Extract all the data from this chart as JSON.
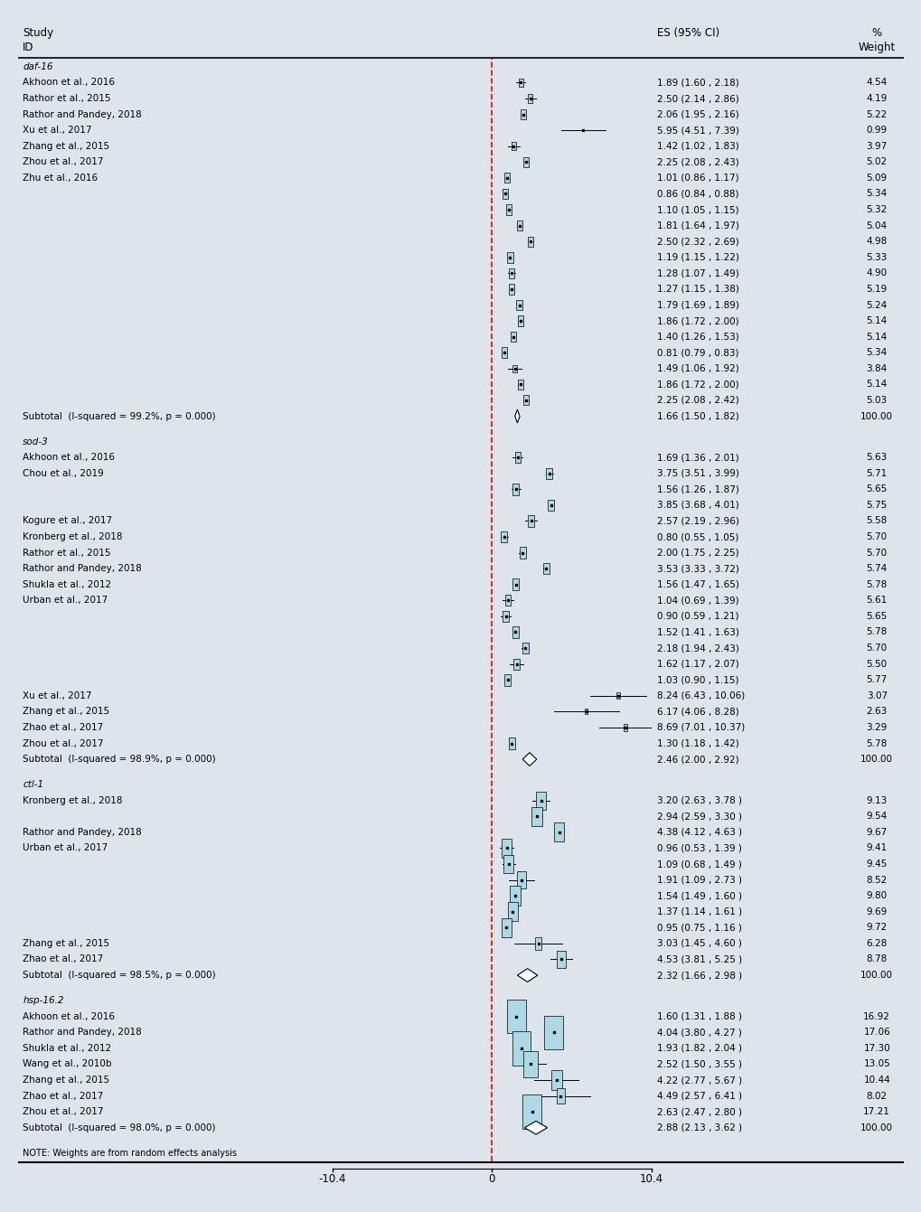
{
  "x_min": -10.4,
  "x_max": 10.4,
  "x_ticks": [
    -10.4,
    0,
    10.4
  ],
  "note": "NOTE: Weights are from random effects analysis",
  "groups": [
    {
      "name": "daf-16",
      "studies": [
        {
          "label": "Akhoon et al., 2016",
          "es": 1.89,
          "ci_lo": 1.6,
          "ci_hi": 2.18,
          "weight": 4.54,
          "ci_str": "1.89 (1.60 , 2.18)",
          "w_str": "4.54"
        },
        {
          "label": "Rathor et al., 2015",
          "es": 2.5,
          "ci_lo": 2.14,
          "ci_hi": 2.86,
          "weight": 4.19,
          "ci_str": "2.50 (2.14 , 2.86)",
          "w_str": "4.19"
        },
        {
          "label": "Rathor and Pandey, 2018",
          "es": 2.06,
          "ci_lo": 1.95,
          "ci_hi": 2.16,
          "weight": 5.22,
          "ci_str": "2.06 (1.95 , 2.16)",
          "w_str": "5.22"
        },
        {
          "label": "Xu et al., 2017",
          "es": 5.95,
          "ci_lo": 4.51,
          "ci_hi": 7.39,
          "weight": 0.99,
          "ci_str": "5.95 (4.51 , 7.39)",
          "w_str": "0.99"
        },
        {
          "label": "Zhang et al., 2015",
          "es": 1.42,
          "ci_lo": 1.02,
          "ci_hi": 1.83,
          "weight": 3.97,
          "ci_str": "1.42 (1.02 , 1.83)",
          "w_str": "3.97"
        },
        {
          "label": "Zhou et al., 2017",
          "es": 2.25,
          "ci_lo": 2.08,
          "ci_hi": 2.43,
          "weight": 5.02,
          "ci_str": "2.25 (2.08 , 2.43)",
          "w_str": "5.02"
        },
        {
          "label": "Zhu et al., 2016",
          "es": 1.01,
          "ci_lo": 0.86,
          "ci_hi": 1.17,
          "weight": 5.09,
          "ci_str": "1.01 (0.86 , 1.17)",
          "w_str": "5.09"
        },
        {
          "label": "",
          "es": 0.86,
          "ci_lo": 0.84,
          "ci_hi": 0.88,
          "weight": 5.34,
          "ci_str": "0.86 (0.84 , 0.88)",
          "w_str": "5.34"
        },
        {
          "label": "",
          "es": 1.1,
          "ci_lo": 1.05,
          "ci_hi": 1.15,
          "weight": 5.32,
          "ci_str": "1.10 (1.05 , 1.15)",
          "w_str": "5.32"
        },
        {
          "label": "",
          "es": 1.81,
          "ci_lo": 1.64,
          "ci_hi": 1.97,
          "weight": 5.04,
          "ci_str": "1.81 (1.64 , 1.97)",
          "w_str": "5.04"
        },
        {
          "label": "",
          "es": 2.5,
          "ci_lo": 2.32,
          "ci_hi": 2.69,
          "weight": 4.98,
          "ci_str": "2.50 (2.32 , 2.69)",
          "w_str": "4.98"
        },
        {
          "label": "",
          "es": 1.19,
          "ci_lo": 1.15,
          "ci_hi": 1.22,
          "weight": 5.33,
          "ci_str": "1.19 (1.15 , 1.22)",
          "w_str": "5.33"
        },
        {
          "label": "",
          "es": 1.28,
          "ci_lo": 1.07,
          "ci_hi": 1.49,
          "weight": 4.9,
          "ci_str": "1.28 (1.07 , 1.49)",
          "w_str": "4.90"
        },
        {
          "label": "",
          "es": 1.27,
          "ci_lo": 1.15,
          "ci_hi": 1.38,
          "weight": 5.19,
          "ci_str": "1.27 (1.15 , 1.38)",
          "w_str": "5.19"
        },
        {
          "label": "",
          "es": 1.79,
          "ci_lo": 1.69,
          "ci_hi": 1.89,
          "weight": 5.24,
          "ci_str": "1.79 (1.69 , 1.89)",
          "w_str": "5.24"
        },
        {
          "label": "",
          "es": 1.86,
          "ci_lo": 1.72,
          "ci_hi": 2.0,
          "weight": 5.14,
          "ci_str": "1.86 (1.72 , 2.00)",
          "w_str": "5.14"
        },
        {
          "label": "",
          "es": 1.4,
          "ci_lo": 1.26,
          "ci_hi": 1.53,
          "weight": 5.14,
          "ci_str": "1.40 (1.26 , 1.53)",
          "w_str": "5.14"
        },
        {
          "label": "",
          "es": 0.81,
          "ci_lo": 0.79,
          "ci_hi": 0.83,
          "weight": 5.34,
          "ci_str": "0.81 (0.79 , 0.83)",
          "w_str": "5.34"
        },
        {
          "label": "",
          "es": 1.49,
          "ci_lo": 1.06,
          "ci_hi": 1.92,
          "weight": 3.84,
          "ci_str": "1.49 (1.06 , 1.92)",
          "w_str": "3.84"
        },
        {
          "label": "",
          "es": 1.86,
          "ci_lo": 1.72,
          "ci_hi": 2.0,
          "weight": 5.14,
          "ci_str": "1.86 (1.72 , 2.00)",
          "w_str": "5.14"
        },
        {
          "label": "",
          "es": 2.25,
          "ci_lo": 2.08,
          "ci_hi": 2.42,
          "weight": 5.03,
          "ci_str": "2.25 (2.08 , 2.42)",
          "w_str": "5.03"
        }
      ],
      "subtotal": {
        "es": 1.66,
        "ci_lo": 1.5,
        "ci_hi": 1.82,
        "ci_str": "1.66 (1.50 , 1.82)",
        "w_str": "100.00",
        "label": "Subtotal  (I-squared = 99.2%, p = 0.000)"
      }
    },
    {
      "name": "sod-3",
      "studies": [
        {
          "label": "Akhoon et al., 2016",
          "es": 1.69,
          "ci_lo": 1.36,
          "ci_hi": 2.01,
          "weight": 5.63,
          "ci_str": "1.69 (1.36 , 2.01)",
          "w_str": "5.63"
        },
        {
          "label": "Chou et al., 2019",
          "es": 3.75,
          "ci_lo": 3.51,
          "ci_hi": 3.99,
          "weight": 5.71,
          "ci_str": "3.75 (3.51 , 3.99)",
          "w_str": "5.71"
        },
        {
          "label": "",
          "es": 1.56,
          "ci_lo": 1.26,
          "ci_hi": 1.87,
          "weight": 5.65,
          "ci_str": "1.56 (1.26 , 1.87)",
          "w_str": "5.65"
        },
        {
          "label": "",
          "es": 3.85,
          "ci_lo": 3.68,
          "ci_hi": 4.01,
          "weight": 5.75,
          "ci_str": "3.85 (3.68 , 4.01)",
          "w_str": "5.75"
        },
        {
          "label": "Kogure et al., 2017",
          "es": 2.57,
          "ci_lo": 2.19,
          "ci_hi": 2.96,
          "weight": 5.58,
          "ci_str": "2.57 (2.19 , 2.96)",
          "w_str": "5.58"
        },
        {
          "label": "Kronberg et al., 2018",
          "es": 0.8,
          "ci_lo": 0.55,
          "ci_hi": 1.05,
          "weight": 5.7,
          "ci_str": "0.80 (0.55 , 1.05)",
          "w_str": "5.70"
        },
        {
          "label": "Rathor et al., 2015",
          "es": 2.0,
          "ci_lo": 1.75,
          "ci_hi": 2.25,
          "weight": 5.7,
          "ci_str": "2.00 (1.75 , 2.25)",
          "w_str": "5.70"
        },
        {
          "label": "Rathor and Pandey, 2018",
          "es": 3.53,
          "ci_lo": 3.33,
          "ci_hi": 3.72,
          "weight": 5.74,
          "ci_str": "3.53 (3.33 , 3.72)",
          "w_str": "5.74"
        },
        {
          "label": "Shukla et al., 2012",
          "es": 1.56,
          "ci_lo": 1.47,
          "ci_hi": 1.65,
          "weight": 5.78,
          "ci_str": "1.56 (1.47 , 1.65)",
          "w_str": "5.78"
        },
        {
          "label": "Urban et al., 2017",
          "es": 1.04,
          "ci_lo": 0.69,
          "ci_hi": 1.39,
          "weight": 5.61,
          "ci_str": "1.04 (0.69 , 1.39)",
          "w_str": "5.61"
        },
        {
          "label": "",
          "es": 0.9,
          "ci_lo": 0.59,
          "ci_hi": 1.21,
          "weight": 5.65,
          "ci_str": "0.90 (0.59 , 1.21)",
          "w_str": "5.65"
        },
        {
          "label": "",
          "es": 1.52,
          "ci_lo": 1.41,
          "ci_hi": 1.63,
          "weight": 5.78,
          "ci_str": "1.52 (1.41 , 1.63)",
          "w_str": "5.78"
        },
        {
          "label": "",
          "es": 2.18,
          "ci_lo": 1.94,
          "ci_hi": 2.43,
          "weight": 5.7,
          "ci_str": "2.18 (1.94 , 2.43)",
          "w_str": "5.70"
        },
        {
          "label": "",
          "es": 1.62,
          "ci_lo": 1.17,
          "ci_hi": 2.07,
          "weight": 5.5,
          "ci_str": "1.62 (1.17 , 2.07)",
          "w_str": "5.50"
        },
        {
          "label": "",
          "es": 1.03,
          "ci_lo": 0.9,
          "ci_hi": 1.15,
          "weight": 5.77,
          "ci_str": "1.03 (0.90 , 1.15)",
          "w_str": "5.77"
        },
        {
          "label": "Xu et al., 2017",
          "es": 8.24,
          "ci_lo": 6.43,
          "ci_hi": 10.06,
          "weight": 3.07,
          "ci_str": "8.24 (6.43 , 10.06)",
          "w_str": "3.07"
        },
        {
          "label": "Zhang et al., 2015",
          "es": 6.17,
          "ci_lo": 4.06,
          "ci_hi": 8.28,
          "weight": 2.63,
          "ci_str": "6.17 (4.06 , 8.28)",
          "w_str": "2.63"
        },
        {
          "label": "Zhao et al., 2017",
          "es": 8.69,
          "ci_lo": 7.01,
          "ci_hi": 10.37,
          "weight": 3.29,
          "ci_str": "8.69 (7.01 , 10.37)",
          "w_str": "3.29"
        },
        {
          "label": "Zhou et al., 2017",
          "es": 1.3,
          "ci_lo": 1.18,
          "ci_hi": 1.42,
          "weight": 5.78,
          "ci_str": "1.30 (1.18 , 1.42)",
          "w_str": "5.78"
        }
      ],
      "subtotal": {
        "es": 2.46,
        "ci_lo": 2.0,
        "ci_hi": 2.92,
        "ci_str": "2.46 (2.00 , 2.92)",
        "w_str": "100.00",
        "label": "Subtotal  (I-squared = 98.9%, p = 0.000)"
      }
    },
    {
      "name": "ctl-1",
      "studies": [
        {
          "label": "Kronberg et al., 2018",
          "es": 3.2,
          "ci_lo": 2.63,
          "ci_hi": 3.78,
          "weight": 9.13,
          "ci_str": "3.20 (2.63 , 3.78 )",
          "w_str": "9.13"
        },
        {
          "label": "",
          "es": 2.94,
          "ci_lo": 2.59,
          "ci_hi": 3.3,
          "weight": 9.54,
          "ci_str": "2.94 (2.59 , 3.30 )",
          "w_str": "9.54"
        },
        {
          "label": "Rathor and Pandey, 2018",
          "es": 4.38,
          "ci_lo": 4.12,
          "ci_hi": 4.63,
          "weight": 9.67,
          "ci_str": "4.38 (4.12 , 4.63 )",
          "w_str": "9.67"
        },
        {
          "label": "Urban et al., 2017",
          "es": 0.96,
          "ci_lo": 0.53,
          "ci_hi": 1.39,
          "weight": 9.41,
          "ci_str": "0.96 (0.53 , 1.39 )",
          "w_str": "9.41"
        },
        {
          "label": "",
          "es": 1.09,
          "ci_lo": 0.68,
          "ci_hi": 1.49,
          "weight": 9.45,
          "ci_str": "1.09 (0.68 , 1.49 )",
          "w_str": "9.45"
        },
        {
          "label": "",
          "es": 1.91,
          "ci_lo": 1.09,
          "ci_hi": 2.73,
          "weight": 8.52,
          "ci_str": "1.91 (1.09 , 2.73 )",
          "w_str": "8.52"
        },
        {
          "label": "",
          "es": 1.54,
          "ci_lo": 1.49,
          "ci_hi": 1.6,
          "weight": 9.8,
          "ci_str": "1.54 (1.49 , 1.60 )",
          "w_str": "9.80"
        },
        {
          "label": "",
          "es": 1.37,
          "ci_lo": 1.14,
          "ci_hi": 1.61,
          "weight": 9.69,
          "ci_str": "1.37 (1.14 , 1.61 )",
          "w_str": "9.69"
        },
        {
          "label": "",
          "es": 0.95,
          "ci_lo": 0.75,
          "ci_hi": 1.16,
          "weight": 9.72,
          "ci_str": "0.95 (0.75 , 1.16 )",
          "w_str": "9.72"
        },
        {
          "label": "Zhang et al., 2015",
          "es": 3.03,
          "ci_lo": 1.45,
          "ci_hi": 4.6,
          "weight": 6.28,
          "ci_str": "3.03 (1.45 , 4.60 )",
          "w_str": "6.28"
        },
        {
          "label": "Zhao et al., 2017",
          "es": 4.53,
          "ci_lo": 3.81,
          "ci_hi": 5.25,
          "weight": 8.78,
          "ci_str": "4.53 (3.81 , 5.25 )",
          "w_str": "8.78"
        }
      ],
      "subtotal": {
        "es": 2.32,
        "ci_lo": 1.66,
        "ci_hi": 2.98,
        "ci_str": "2.32 (1.66 , 2.98 )",
        "w_str": "100.00",
        "label": "Subtotal  (I-squared = 98.5%, p = 0.000)"
      }
    },
    {
      "name": "hsp-16.2",
      "studies": [
        {
          "label": "Akhoon et al., 2016",
          "es": 1.6,
          "ci_lo": 1.31,
          "ci_hi": 1.88,
          "weight": 16.92,
          "ci_str": "1.60 (1.31 , 1.88 )",
          "w_str": "16.92"
        },
        {
          "label": "Rathor and Pandey, 2018",
          "es": 4.04,
          "ci_lo": 3.8,
          "ci_hi": 4.27,
          "weight": 17.06,
          "ci_str": "4.04 (3.80 , 4.27 )",
          "w_str": "17.06"
        },
        {
          "label": "Shukla et al., 2012",
          "es": 1.93,
          "ci_lo": 1.82,
          "ci_hi": 2.04,
          "weight": 17.3,
          "ci_str": "1.93 (1.82 , 2.04 )",
          "w_str": "17.30"
        },
        {
          "label": "Wang et al., 2010b",
          "es": 2.52,
          "ci_lo": 1.5,
          "ci_hi": 3.55,
          "weight": 13.05,
          "ci_str": "2.52 (1.50 , 3.55 )",
          "w_str": "13.05"
        },
        {
          "label": "Zhang et al., 2015",
          "es": 4.22,
          "ci_lo": 2.77,
          "ci_hi": 5.67,
          "weight": 10.44,
          "ci_str": "4.22 (2.77 , 5.67 )",
          "w_str": "10.44"
        },
        {
          "label": "Zhao et al., 2017",
          "es": 4.49,
          "ci_lo": 2.57,
          "ci_hi": 6.41,
          "weight": 8.02,
          "ci_str": "4.49 (2.57 , 6.41 )",
          "w_str": "8.02"
        },
        {
          "label": "Zhou et al., 2017",
          "es": 2.63,
          "ci_lo": 2.47,
          "ci_hi": 2.8,
          "weight": 17.21,
          "ci_str": "2.63 (2.47 , 2.80 )",
          "w_str": "17.21"
        }
      ],
      "subtotal": {
        "es": 2.88,
        "ci_lo": 2.13,
        "ci_hi": 3.62,
        "ci_str": "2.88 (2.13 , 3.62 )",
        "w_str": "100.00",
        "label": "Subtotal  (I-squared = 98.0%, p = 0.000)"
      }
    }
  ],
  "box_color": "#ADD8E6",
  "box_edge_color": "#000000",
  "line_color": "#000000",
  "diamond_facecolor": "#FFFFFF",
  "diamond_edgecolor": "#000000",
  "dashed_line_color": "#FF0000",
  "bg_color": "#DDE4EC",
  "panel_bg": "#FFFFFF",
  "font_size": 7.5,
  "label_font_size": 7.5,
  "header_font_size": 8.5
}
